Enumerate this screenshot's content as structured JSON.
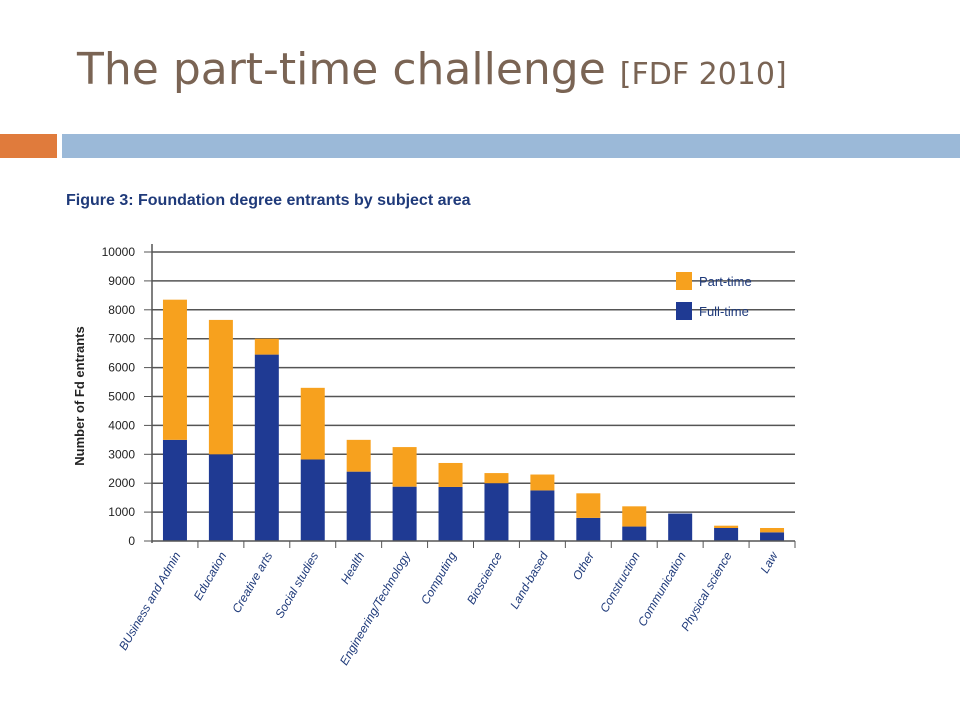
{
  "slide": {
    "title_main": "The part-time challenge",
    "title_suffix": "[FDF 2010]",
    "colors": {
      "accent_orange": "#e07b3c",
      "accent_blue": "#9bb9d8",
      "title": "#7a6454"
    }
  },
  "chart_data": {
    "type": "bar",
    "stacked": true,
    "title": "Figure 3: Foundation degree entrants by subject area",
    "xlabel": "",
    "ylabel": "Number of Fd entrants",
    "ylim": [
      0,
      10000
    ],
    "yticks": [
      0,
      1000,
      2000,
      3000,
      4000,
      5000,
      6000,
      7000,
      8000,
      9000,
      10000
    ],
    "grid": true,
    "legend_position": "top-right",
    "categories": [
      "BUsiness and Admin",
      "Education",
      "Creative arts",
      "Social studies",
      "Health",
      "Engineering/Technology",
      "Computing",
      "Bioscience",
      "Land-based",
      "Other",
      "Construction",
      "Communication",
      "Physical science",
      "Law"
    ],
    "series": [
      {
        "name": "Full-time",
        "color": "#1f3a93",
        "values": [
          3500,
          3000,
          6450,
          2820,
          2400,
          1880,
          1870,
          2000,
          1750,
          800,
          500,
          950,
          450,
          300
        ]
      },
      {
        "name": "Part-time",
        "color": "#f7a11e",
        "values": [
          4850,
          4650,
          550,
          2480,
          1100,
          1370,
          830,
          350,
          550,
          850,
          700,
          0,
          80,
          150
        ]
      }
    ]
  }
}
